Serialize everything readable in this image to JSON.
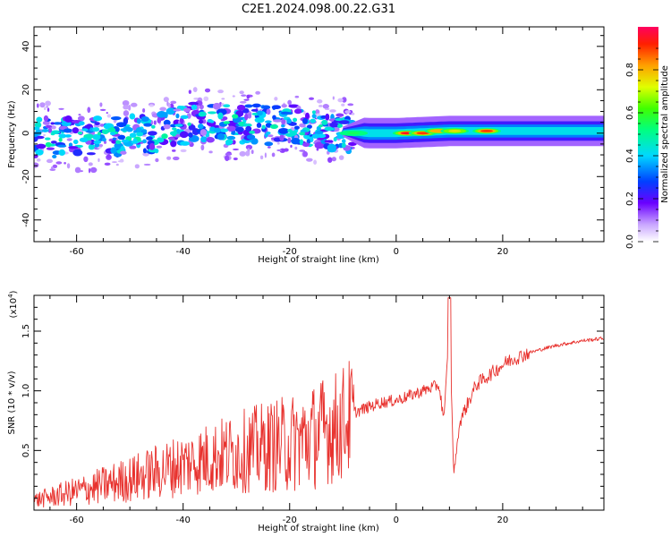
{
  "title": "C2E1.2024.098.00.22.G31",
  "chart_data": [
    {
      "type": "heatmap",
      "xlabel": "Height of straight line (km)",
      "ylabel": "Frequency (Hz)",
      "xlim": [
        -68,
        39
      ],
      "ylim": [
        -50,
        49
      ],
      "xticks": [
        -60,
        -40,
        -20,
        0,
        20
      ],
      "yticks": [
        -40,
        -20,
        0,
        20,
        40
      ],
      "colorbar": {
        "label": "Normalized spectral amplitude",
        "range": [
          0.0,
          1.0
        ],
        "ticks": [
          0.0,
          0.2,
          0.4,
          0.6,
          0.8
        ],
        "tick_labels": [
          "0.0",
          "0.2",
          "0.4",
          "0.6",
          "0.8"
        ]
      },
      "band_center_hz": [
        {
          "x": -66,
          "y": -2
        },
        {
          "x": -55,
          "y": -2
        },
        {
          "x": -45,
          "y": 0
        },
        {
          "x": -38,
          "y": 5
        },
        {
          "x": -30,
          "y": 4
        },
        {
          "x": -20,
          "y": 4
        },
        {
          "x": -12,
          "y": 1
        },
        {
          "x": -5,
          "y": 0
        },
        {
          "x": 0,
          "y": 0
        },
        {
          "x": 10,
          "y": 1
        },
        {
          "x": 20,
          "y": 1
        },
        {
          "x": 39,
          "y": 1
        }
      ],
      "peaks": [
        {
          "x": 2,
          "y": 0,
          "amp": 0.95
        },
        {
          "x": 5,
          "y": 0,
          "amp": 0.9
        },
        {
          "x": 8,
          "y": 1,
          "amp": 0.8
        },
        {
          "x": 11,
          "y": 1,
          "amp": 0.75
        },
        {
          "x": 17,
          "y": 1,
          "amp": 0.9
        },
        {
          "x": -8,
          "y": 0,
          "amp": 0.55
        }
      ],
      "grid": false
    },
    {
      "type": "line",
      "xlabel": "Height of straight line (km)",
      "ylabel": "SNR (10 * v/v)",
      "y_multiplier": "(x10^4)",
      "xlim": [
        -68,
        39
      ],
      "ylim": [
        0,
        1.8
      ],
      "xticks": [
        -60,
        -40,
        -20,
        0,
        20
      ],
      "yticks": [
        0.5,
        1.0,
        1.5
      ],
      "ytick_labels": [
        "0.5",
        "1.0",
        "1.5"
      ],
      "series": [
        {
          "color": "#e8322e",
          "x": [
            -68,
            -60,
            -50,
            -45,
            -40,
            -35,
            -30,
            -25,
            -20,
            -15,
            -13,
            -11,
            -9,
            -6,
            -3,
            0,
            2,
            5,
            8,
            9,
            10,
            10.8,
            12,
            15,
            18,
            21,
            25,
            30,
            35,
            39
          ],
          "y": [
            0.05,
            0.1,
            0.18,
            0.25,
            0.32,
            0.38,
            0.4,
            0.42,
            0.4,
            0.5,
            0.62,
            0.6,
            0.8,
            0.85,
            0.9,
            0.92,
            0.95,
            1.0,
            1.05,
            0.75,
            1.6,
            0.3,
            0.75,
            1.05,
            1.15,
            1.25,
            1.32,
            1.38,
            1.42,
            1.44
          ]
        }
      ],
      "grid": false
    }
  ]
}
